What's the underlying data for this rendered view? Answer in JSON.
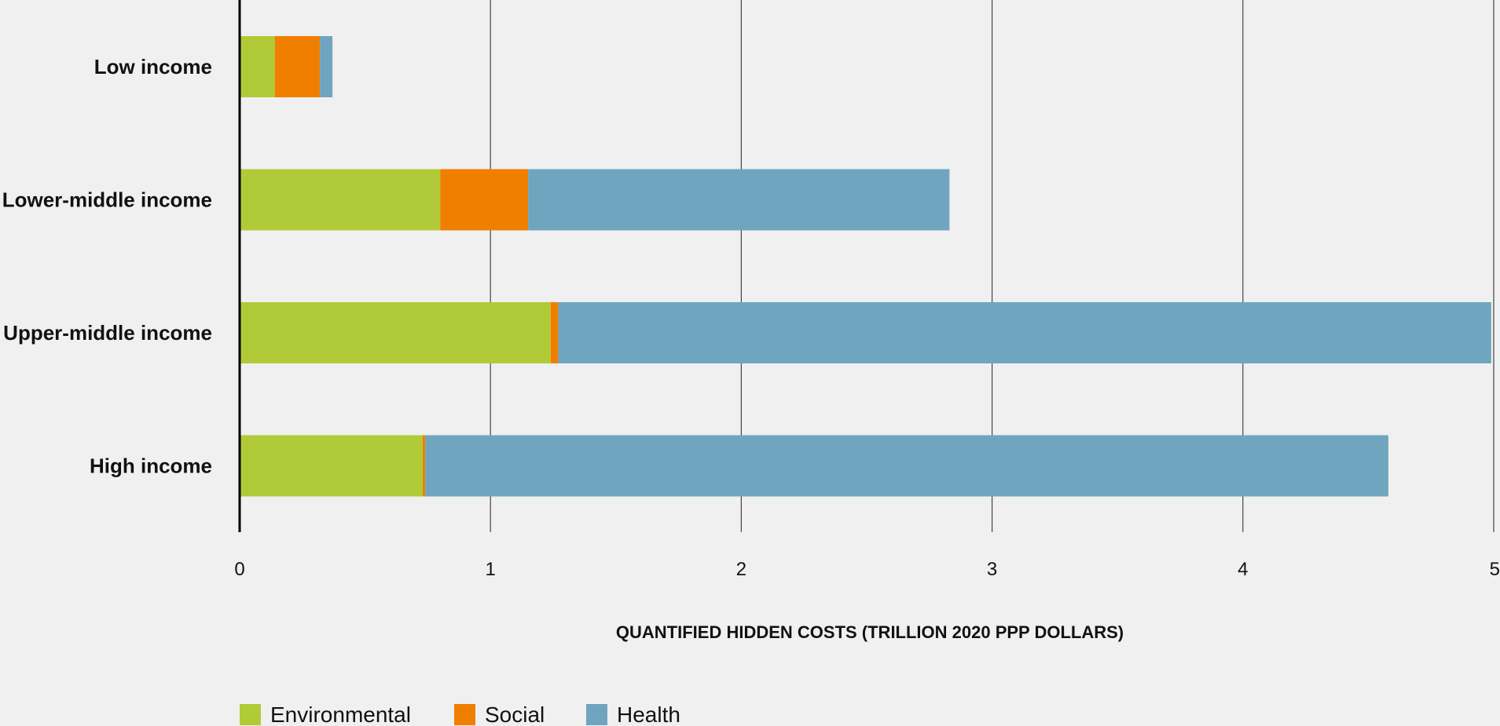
{
  "chart_data": {
    "type": "bar",
    "orientation": "horizontal",
    "stacked": true,
    "categories": [
      "Low income",
      "Lower-middle income",
      "Upper-middle income",
      "High income"
    ],
    "series": [
      {
        "name": "Environmental",
        "color": "#b1ca37",
        "values": [
          0.14,
          0.8,
          1.24,
          0.73
        ]
      },
      {
        "name": "Social",
        "color": "#f07f00",
        "values": [
          0.18,
          0.35,
          0.03,
          0.01
        ]
      },
      {
        "name": "Health",
        "color": "#70a5bf",
        "values": [
          0.05,
          1.68,
          3.72,
          3.84
        ]
      }
    ],
    "xlabel": "QUANTIFIED HIDDEN COSTS (TRILLION 2020 PPP DOLLARS)",
    "ylabel": "",
    "xlim": [
      0,
      5
    ],
    "xticks": [
      "0",
      "1",
      "2",
      "3",
      "4",
      "5"
    ],
    "grid": "vertical",
    "legend_position": "bottom-left"
  }
}
